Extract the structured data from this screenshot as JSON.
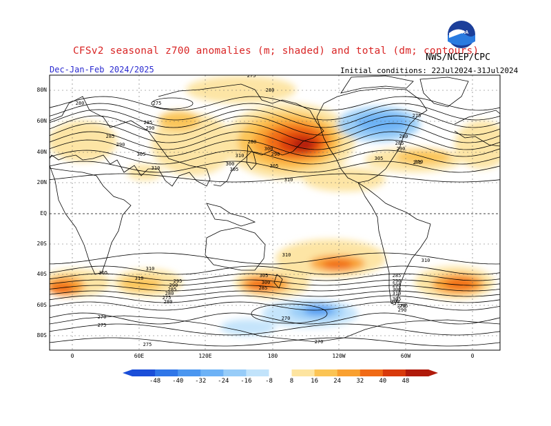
{
  "title": "CFSv2 seasonal z700 anomalies (m; shaded) and total (dm; contours)",
  "season": "Dec-Jan-Feb 2024/2025",
  "organization": "NWS/NCEP/CPC",
  "logo_text": "NOAA",
  "initial_conditions": "Initial conditions: 22Jul2024-31Jul2024",
  "map": {
    "lat_labels": [
      "80N",
      "60N",
      "40N",
      "20N",
      "EQ",
      "20S",
      "40S",
      "60S",
      "80S"
    ],
    "lon_labels": [
      "0",
      "60E",
      "120E",
      "180",
      "120W",
      "60W",
      "0"
    ],
    "contour_labels": [
      "275",
      "280",
      "280",
      "275",
      "285",
      "290",
      "280",
      "285",
      "290",
      "305",
      "305",
      "310",
      "300",
      "305",
      "310",
      "310",
      "275",
      "280",
      "285",
      "290",
      "305",
      "310",
      "290",
      "300",
      "310",
      "310",
      "305",
      "310",
      "310",
      "305",
      "300",
      "295",
      "290",
      "285",
      "280",
      "275",
      "270",
      "270",
      "270",
      "275",
      "275",
      "270",
      "285",
      "290",
      "295",
      "300",
      "310",
      "305",
      "300",
      "295",
      "290",
      "285",
      "280",
      "275"
    ]
  },
  "colorbar": {
    "ticks": [
      "-48",
      "-40",
      "-32",
      "-24",
      "-16",
      "-8",
      "8",
      "16",
      "24",
      "32",
      "40",
      "48"
    ],
    "colors": [
      "#1a4ed8",
      "#2f76e8",
      "#4a96f0",
      "#6db2f6",
      "#97ccf8",
      "#c1e3fb",
      "#ffffff",
      "#fde4a0",
      "#fbc454",
      "#f9a030",
      "#f06a16",
      "#d83a0c",
      "#b01a0a"
    ]
  },
  "colors": {
    "title": "#d92525",
    "season": "#2a2ad0",
    "land_outline": "#000000",
    "grid": "#666666"
  }
}
